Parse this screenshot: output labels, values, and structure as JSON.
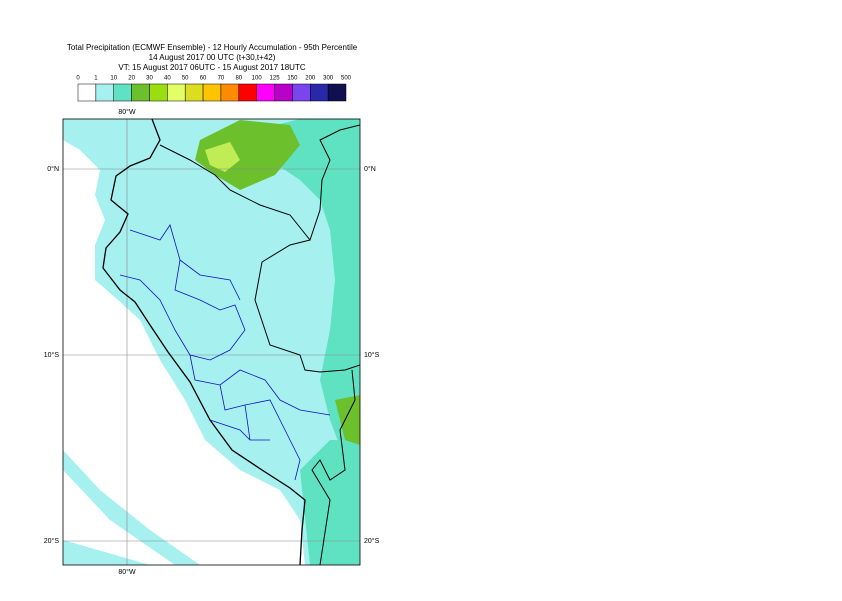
{
  "header": {
    "title": "Total Precipitation (ECMWF Ensemble) - 12 Hourly Accumulation - 95th Percentile",
    "base_time": "14 August 2017 00 UTC (t+30,t+42)",
    "valid_time": "VT: 15 August 2017 06UTC - 15 August 2017 18UTC"
  },
  "legend": {
    "labels": [
      0,
      1,
      10,
      20,
      30,
      40,
      50,
      60,
      70,
      80,
      100,
      125,
      150,
      200,
      300,
      500
    ],
    "colors": [
      "#ffffff",
      "#a6f0f0",
      "#5fe2c2",
      "#6cc02c",
      "#9ade10",
      "#e4ff66",
      "#dcdc20",
      "#ffc400",
      "#ff8c00",
      "#ff0000",
      "#ff00ff",
      "#b800c8",
      "#7a44ee",
      "#2828a8",
      "#101050"
    ]
  },
  "axes": {
    "lon_top": "80°W",
    "lon_bottom": "80°W",
    "lat": [
      {
        "left": "0°N",
        "right": "0°N"
      },
      {
        "left": "10°S",
        "right": "10°S"
      },
      {
        "left": "20°S",
        "right": "20°S"
      }
    ]
  }
}
